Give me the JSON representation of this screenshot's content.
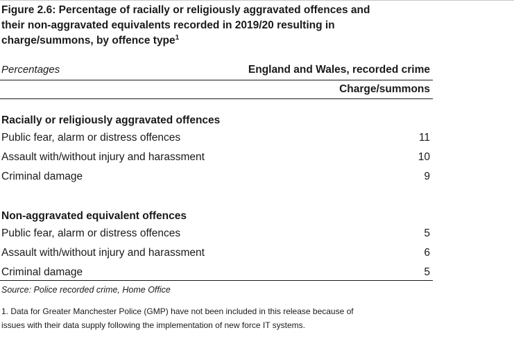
{
  "figure": {
    "title_line1": "Figure 2.6:  Percentage of racially or religiously aggravated offences and",
    "title_line2": "their non-aggravated equivalents recorded in 2019/20 resulting in",
    "title_line3": "charge/summons, by offence type",
    "title_footnote_marker": "1"
  },
  "table": {
    "units_label": "Percentages",
    "coverage_label": "England and Wales, recorded crime",
    "column_header": "Charge/summons",
    "sections": [
      {
        "heading": "Racially or religiously aggravated offences",
        "rows": [
          {
            "label": "Public fear, alarm or distress offences",
            "value": "11"
          },
          {
            "label": "Assault with/without injury and harassment",
            "value": "10"
          },
          {
            "label": "Criminal damage",
            "value": "9"
          }
        ]
      },
      {
        "heading": "Non-aggravated equivalent offences",
        "rows": [
          {
            "label": "Public fear, alarm or distress offences",
            "value": "5"
          },
          {
            "label": "Assault with/without injury and harassment",
            "value": "6"
          },
          {
            "label": "Criminal damage",
            "value": "5"
          }
        ]
      }
    ]
  },
  "source": "Source: Police recorded crime, Home Office",
  "footnote_line1": "1. Data for Greater Manchester Police (GMP) have not been included in this release because of",
  "footnote_line2": "issues with their data supply following the implementation of new force IT systems."
}
